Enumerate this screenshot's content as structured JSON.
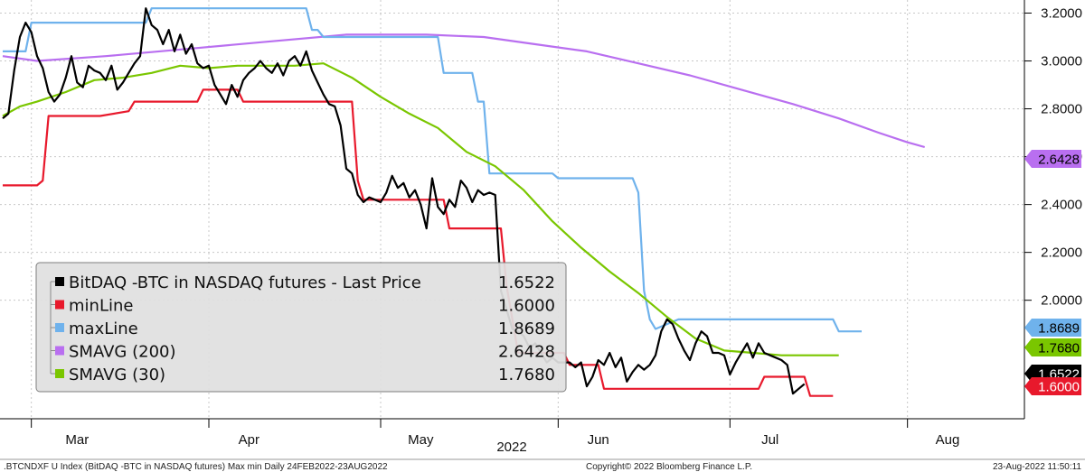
{
  "chart_data": {
    "type": "line",
    "title": "",
    "xlabel": "2022",
    "ylabel": "",
    "ylim": [
      1.55,
      3.3
    ],
    "x_range": [
      "2022-02-24",
      "2022-08-23"
    ],
    "grid": true,
    "legend_placement": "bottom-left",
    "x_tick_labels": [
      {
        "date": "2022-03-09",
        "label": "Mar"
      },
      {
        "date": "2022-04-08",
        "label": "Apr"
      },
      {
        "date": "2022-05-08",
        "label": "May"
      },
      {
        "date": "2022-06-08",
        "label": "Jun"
      },
      {
        "date": "2022-07-08",
        "label": "Jul"
      },
      {
        "date": "2022-08-08",
        "label": "Aug"
      }
    ],
    "month_boundaries": [
      "2022-03-01",
      "2022-04-01",
      "2022-05-01",
      "2022-06-01",
      "2022-07-01",
      "2022-08-01"
    ],
    "y_ticks": [
      2.0,
      2.2,
      2.4,
      2.6,
      2.8,
      3.0,
      3.2
    ],
    "y_tick_labels": [
      "2.0000",
      "2.2000",
      "2.4000",
      "2.6000",
      "2.8000",
      "3.0000",
      "3.2000"
    ],
    "series": [
      {
        "key": "last",
        "name": "BitDAQ -BTC in NASDAQ futures - Last Price",
        "last_value": "1.6522",
        "color": "#000000",
        "tag_text_color": "#ffffff",
        "points": [
          [
            "2022-02-24",
            2.76
          ],
          [
            "2022-02-25",
            2.78
          ],
          [
            "2022-02-26",
            2.96
          ],
          [
            "2022-02-27",
            3.1
          ],
          [
            "2022-02-28",
            3.16
          ],
          [
            "2022-03-01",
            3.12
          ],
          [
            "2022-03-02",
            3.02
          ],
          [
            "2022-03-03",
            2.97
          ],
          [
            "2022-03-04",
            2.87
          ],
          [
            "2022-03-05",
            2.83
          ],
          [
            "2022-03-06",
            2.86
          ],
          [
            "2022-03-07",
            2.93
          ],
          [
            "2022-03-08",
            3.02
          ],
          [
            "2022-03-09",
            2.91
          ],
          [
            "2022-03-10",
            2.89
          ],
          [
            "2022-03-11",
            2.98
          ],
          [
            "2022-03-12",
            2.96
          ],
          [
            "2022-03-13",
            2.95
          ],
          [
            "2022-03-14",
            2.92
          ],
          [
            "2022-03-15",
            2.98
          ],
          [
            "2022-03-16",
            2.88
          ],
          [
            "2022-03-17",
            2.91
          ],
          [
            "2022-03-18",
            2.95
          ],
          [
            "2022-03-19",
            2.99
          ],
          [
            "2022-03-20",
            3.02
          ],
          [
            "2022-03-21",
            3.22
          ],
          [
            "2022-03-22",
            3.15
          ],
          [
            "2022-03-23",
            3.13
          ],
          [
            "2022-03-24",
            3.07
          ],
          [
            "2022-03-25",
            3.13
          ],
          [
            "2022-03-26",
            3.04
          ],
          [
            "2022-03-27",
            3.11
          ],
          [
            "2022-03-28",
            3.03
          ],
          [
            "2022-03-29",
            3.07
          ],
          [
            "2022-03-30",
            2.99
          ],
          [
            "2022-03-31",
            2.97
          ],
          [
            "2022-04-01",
            2.98
          ],
          [
            "2022-04-02",
            2.9
          ],
          [
            "2022-04-03",
            2.86
          ],
          [
            "2022-04-04",
            2.82
          ],
          [
            "2022-04-05",
            2.9
          ],
          [
            "2022-04-06",
            2.85
          ],
          [
            "2022-04-07",
            2.92
          ],
          [
            "2022-04-08",
            2.95
          ],
          [
            "2022-04-09",
            2.97
          ],
          [
            "2022-04-10",
            3.0
          ],
          [
            "2022-04-11",
            2.97
          ],
          [
            "2022-04-12",
            2.95
          ],
          [
            "2022-04-13",
            2.99
          ],
          [
            "2022-04-14",
            2.94
          ],
          [
            "2022-04-15",
            3.0
          ],
          [
            "2022-04-16",
            3.02
          ],
          [
            "2022-04-17",
            2.98
          ],
          [
            "2022-04-18",
            3.04
          ],
          [
            "2022-04-19",
            2.96
          ],
          [
            "2022-04-20",
            2.91
          ],
          [
            "2022-04-21",
            2.86
          ],
          [
            "2022-04-22",
            2.82
          ],
          [
            "2022-04-23",
            2.81
          ],
          [
            "2022-04-24",
            2.73
          ],
          [
            "2022-04-25",
            2.55
          ],
          [
            "2022-04-26",
            2.53
          ],
          [
            "2022-04-27",
            2.44
          ],
          [
            "2022-04-28",
            2.41
          ],
          [
            "2022-04-29",
            2.43
          ],
          [
            "2022-04-30",
            2.42
          ],
          [
            "2022-05-01",
            2.41
          ],
          [
            "2022-05-02",
            2.45
          ],
          [
            "2022-05-03",
            2.52
          ],
          [
            "2022-05-04",
            2.47
          ],
          [
            "2022-05-05",
            2.49
          ],
          [
            "2022-05-06",
            2.43
          ],
          [
            "2022-05-07",
            2.46
          ],
          [
            "2022-05-08",
            2.4
          ],
          [
            "2022-05-09",
            2.3
          ],
          [
            "2022-05-10",
            2.51
          ],
          [
            "2022-05-11",
            2.39
          ],
          [
            "2022-05-12",
            2.36
          ],
          [
            "2022-05-13",
            2.42
          ],
          [
            "2022-05-14",
            2.39
          ],
          [
            "2022-05-15",
            2.5
          ],
          [
            "2022-05-16",
            2.47
          ],
          [
            "2022-05-17",
            2.41
          ],
          [
            "2022-05-18",
            2.46
          ],
          [
            "2022-05-19",
            2.44
          ],
          [
            "2022-05-20",
            2.45
          ],
          [
            "2022-05-21",
            2.44
          ],
          [
            "2022-05-22",
            2.04
          ],
          [
            "2022-05-23",
            1.96
          ],
          [
            "2022-05-24",
            1.88
          ],
          [
            "2022-05-25",
            1.87
          ],
          [
            "2022-05-26",
            1.85
          ],
          [
            "2022-05-27",
            1.8
          ],
          [
            "2022-05-28",
            1.82
          ],
          [
            "2022-05-29",
            1.78
          ],
          [
            "2022-05-30",
            1.74
          ],
          [
            "2022-05-31",
            1.76
          ],
          [
            "2022-06-01",
            1.74
          ],
          [
            "2022-06-02",
            1.74
          ],
          [
            "2022-06-03",
            1.74
          ],
          [
            "2022-06-04",
            1.72
          ],
          [
            "2022-06-05",
            1.74
          ],
          [
            "2022-06-06",
            1.64
          ],
          [
            "2022-06-07",
            1.68
          ],
          [
            "2022-06-08",
            1.75
          ],
          [
            "2022-06-09",
            1.73
          ],
          [
            "2022-06-10",
            1.78
          ],
          [
            "2022-06-11",
            1.72
          ],
          [
            "2022-06-12",
            1.76
          ],
          [
            "2022-06-13",
            1.66
          ],
          [
            "2022-06-14",
            1.7
          ],
          [
            "2022-06-15",
            1.73
          ],
          [
            "2022-06-16",
            1.71
          ],
          [
            "2022-06-17",
            1.73
          ],
          [
            "2022-06-18",
            1.77
          ],
          [
            "2022-06-19",
            1.87
          ],
          [
            "2022-06-20",
            1.92
          ],
          [
            "2022-06-21",
            1.9
          ],
          [
            "2022-06-22",
            1.84
          ],
          [
            "2022-06-23",
            1.79
          ],
          [
            "2022-06-24",
            1.75
          ],
          [
            "2022-06-25",
            1.82
          ],
          [
            "2022-06-26",
            1.87
          ],
          [
            "2022-06-27",
            1.85
          ],
          [
            "2022-06-28",
            1.78
          ],
          [
            "2022-06-29",
            1.78
          ],
          [
            "2022-06-30",
            1.77
          ],
          [
            "2022-07-01",
            1.69
          ],
          [
            "2022-07-02",
            1.74
          ],
          [
            "2022-07-03",
            1.78
          ],
          [
            "2022-07-04",
            1.82
          ],
          [
            "2022-07-05",
            1.76
          ],
          [
            "2022-07-06",
            1.82
          ],
          [
            "2022-07-07",
            1.78
          ],
          [
            "2022-07-08",
            1.77
          ],
          [
            "2022-07-09",
            1.76
          ],
          [
            "2022-07-10",
            1.75
          ],
          [
            "2022-07-11",
            1.73
          ],
          [
            "2022-07-12",
            1.61
          ],
          [
            "2022-07-13",
            1.63
          ],
          [
            "2022-07-14",
            1.65
          ]
        ]
      },
      {
        "key": "min",
        "name": "minLine",
        "last_value": "1.6000",
        "color": "#e8192c",
        "tag_text_color": "#ffffff",
        "points": [
          [
            "2022-02-24",
            2.48
          ],
          [
            "2022-03-02",
            2.48
          ],
          [
            "2022-03-03",
            2.5
          ],
          [
            "2022-03-04",
            2.77
          ],
          [
            "2022-03-13",
            2.77
          ],
          [
            "2022-03-18",
            2.79
          ],
          [
            "2022-03-19",
            2.83
          ],
          [
            "2022-03-30",
            2.83
          ],
          [
            "2022-03-31",
            2.88
          ],
          [
            "2022-04-06",
            2.88
          ],
          [
            "2022-04-07",
            2.83
          ],
          [
            "2022-04-26",
            2.83
          ],
          [
            "2022-04-27",
            2.5
          ],
          [
            "2022-04-28",
            2.42
          ],
          [
            "2022-05-12",
            2.42
          ],
          [
            "2022-05-13",
            2.3
          ],
          [
            "2022-05-22",
            2.3
          ],
          [
            "2022-05-23",
            2.06
          ],
          [
            "2022-05-25",
            1.78
          ],
          [
            "2022-06-02",
            1.78
          ],
          [
            "2022-06-03",
            1.73
          ],
          [
            "2022-06-08",
            1.73
          ],
          [
            "2022-06-09",
            1.63
          ],
          [
            "2022-07-06",
            1.63
          ],
          [
            "2022-07-07",
            1.68
          ],
          [
            "2022-07-14",
            1.68
          ],
          [
            "2022-07-15",
            1.6
          ],
          [
            "2022-07-19",
            1.6
          ]
        ]
      },
      {
        "key": "max",
        "name": "maxLine",
        "last_value": "1.8689",
        "color": "#6fb2ec",
        "tag_text_color": "#000000",
        "points": [
          [
            "2022-02-24",
            3.04
          ],
          [
            "2022-02-28",
            3.04
          ],
          [
            "2022-03-01",
            3.16
          ],
          [
            "2022-03-21",
            3.16
          ],
          [
            "2022-03-22",
            3.22
          ],
          [
            "2022-04-18",
            3.22
          ],
          [
            "2022-04-19",
            3.13
          ],
          [
            "2022-04-20",
            3.13
          ],
          [
            "2022-04-21",
            3.1
          ],
          [
            "2022-05-11",
            3.1
          ],
          [
            "2022-05-12",
            2.95
          ],
          [
            "2022-05-17",
            2.95
          ],
          [
            "2022-05-18",
            2.83
          ],
          [
            "2022-05-19",
            2.83
          ],
          [
            "2022-05-20",
            2.53
          ],
          [
            "2022-05-31",
            2.53
          ],
          [
            "2022-06-01",
            2.51
          ],
          [
            "2022-06-14",
            2.51
          ],
          [
            "2022-06-15",
            2.45
          ],
          [
            "2022-06-16",
            2.04
          ],
          [
            "2022-06-17",
            1.92
          ],
          [
            "2022-06-18",
            1.88
          ],
          [
            "2022-06-22",
            1.92
          ],
          [
            "2022-07-19",
            1.92
          ],
          [
            "2022-07-20",
            1.87
          ],
          [
            "2022-07-24",
            1.87
          ]
        ]
      },
      {
        "key": "sma200",
        "name": "SMAVG (200)",
        "last_value": "2.6428",
        "color": "#b96ff0",
        "tag_text_color": "#000000",
        "points": [
          [
            "2022-02-24",
            3.02
          ],
          [
            "2022-03-02",
            3.0
          ],
          [
            "2022-03-14",
            3.02
          ],
          [
            "2022-03-28",
            3.05
          ],
          [
            "2022-04-11",
            3.08
          ],
          [
            "2022-04-25",
            3.11
          ],
          [
            "2022-05-09",
            3.11
          ],
          [
            "2022-05-19",
            3.1
          ],
          [
            "2022-05-28",
            3.07
          ],
          [
            "2022-06-06",
            3.04
          ],
          [
            "2022-06-15",
            2.99
          ],
          [
            "2022-06-24",
            2.94
          ],
          [
            "2022-07-03",
            2.88
          ],
          [
            "2022-07-12",
            2.82
          ],
          [
            "2022-07-20",
            2.76
          ],
          [
            "2022-07-27",
            2.7
          ],
          [
            "2022-08-01",
            2.66
          ],
          [
            "2022-08-04",
            2.64
          ]
        ]
      },
      {
        "key": "sma30",
        "name": "SMAVG (30)",
        "last_value": "1.7680",
        "color": "#7ac600",
        "tag_text_color": "#000000",
        "points": [
          [
            "2022-02-24",
            2.77
          ],
          [
            "2022-02-27",
            2.81
          ],
          [
            "2022-03-02",
            2.83
          ],
          [
            "2022-03-07",
            2.87
          ],
          [
            "2022-03-12",
            2.92
          ],
          [
            "2022-03-17",
            2.93
          ],
          [
            "2022-03-22",
            2.95
          ],
          [
            "2022-03-27",
            2.98
          ],
          [
            "2022-04-01",
            2.97
          ],
          [
            "2022-04-06",
            2.98
          ],
          [
            "2022-04-11",
            2.98
          ],
          [
            "2022-04-16",
            2.98
          ],
          [
            "2022-04-21",
            2.99
          ],
          [
            "2022-04-26",
            2.93
          ],
          [
            "2022-05-01",
            2.85
          ],
          [
            "2022-05-06",
            2.78
          ],
          [
            "2022-05-11",
            2.72
          ],
          [
            "2022-05-16",
            2.62
          ],
          [
            "2022-05-21",
            2.56
          ],
          [
            "2022-05-26",
            2.46
          ],
          [
            "2022-05-31",
            2.33
          ],
          [
            "2022-06-05",
            2.22
          ],
          [
            "2022-06-10",
            2.12
          ],
          [
            "2022-06-15",
            2.03
          ],
          [
            "2022-06-20",
            1.93
          ],
          [
            "2022-06-25",
            1.84
          ],
          [
            "2022-06-30",
            1.79
          ],
          [
            "2022-07-05",
            1.78
          ],
          [
            "2022-07-10",
            1.77
          ],
          [
            "2022-07-15",
            1.77
          ],
          [
            "2022-07-20",
            1.77
          ]
        ]
      }
    ],
    "legend": {
      "order": [
        "last",
        "min",
        "max",
        "sma200",
        "sma30"
      ]
    },
    "right_axis_tags": [
      {
        "series": "sma200",
        "text": "2.6428",
        "y": 2.6428
      },
      {
        "series": "max",
        "text": "1.8689",
        "y": 1.8689
      },
      {
        "series": "sma30",
        "text": "1.7680",
        "y": 1.768
      },
      {
        "series": "last",
        "text": "1.6522",
        "y": 1.6522
      },
      {
        "series": "min",
        "text": "1.6000",
        "y": 1.6
      }
    ]
  },
  "footer": {
    "left": ".BTCNDXF U Index (BitDAQ -BTC in NASDAQ futures) Max min  Daily 24FEB2022-23AUG2022",
    "center": "Copyright© 2022 Bloomberg Finance L.P.",
    "right": "23-Aug-2022 11:50:11"
  }
}
